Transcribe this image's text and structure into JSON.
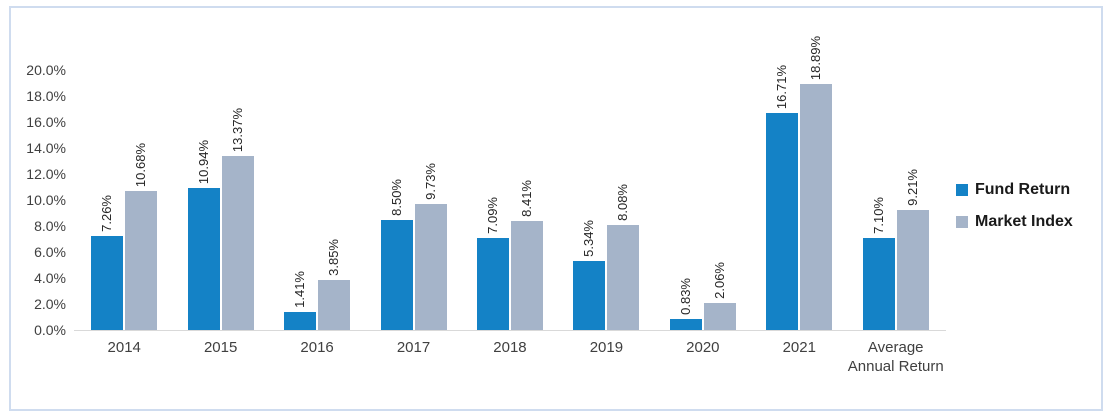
{
  "chart_data": {
    "type": "bar",
    "title": "",
    "categories": [
      "2014",
      "2015",
      "2016",
      "2017",
      "2018",
      "2019",
      "2020",
      "2021",
      "Average Annual Return"
    ],
    "series": [
      {
        "name": "Fund Return",
        "color": "#1482C6",
        "values": [
          7.26,
          10.94,
          1.41,
          8.5,
          7.09,
          5.34,
          0.83,
          16.71,
          7.1
        ],
        "labels": [
          "7.26%",
          "10.94%",
          "1.41%",
          "8.50%",
          "7.09%",
          "5.34%",
          "0.83%",
          "16.71%",
          "7.10%"
        ]
      },
      {
        "name": "Market Index",
        "color": "#A5B4C9",
        "values": [
          10.68,
          13.37,
          3.85,
          9.73,
          8.41,
          8.08,
          2.06,
          18.89,
          9.21
        ],
        "labels": [
          "10.68%",
          "13.37%",
          "3.85%",
          "9.73%",
          "8.41%",
          "8.08%",
          "2.06%",
          "18.89%",
          "9.21%"
        ]
      }
    ],
    "y_axis": {
      "min": 0,
      "max": 20,
      "step": 2,
      "ticks": [
        "0.0%",
        "2.0%",
        "4.0%",
        "6.0%",
        "8.0%",
        "10.0%",
        "12.0%",
        "14.0%",
        "16.0%",
        "18.0%",
        "20.0%"
      ]
    },
    "grid": false,
    "legend_position": "right",
    "data_labels_rotated": true
  },
  "colors": {
    "axis_line": "#D9D9D9",
    "axis_text": "#404040",
    "data_label_text": "#262626",
    "frame_border": "#CFDCEF",
    "background": "#FFFFFF"
  }
}
